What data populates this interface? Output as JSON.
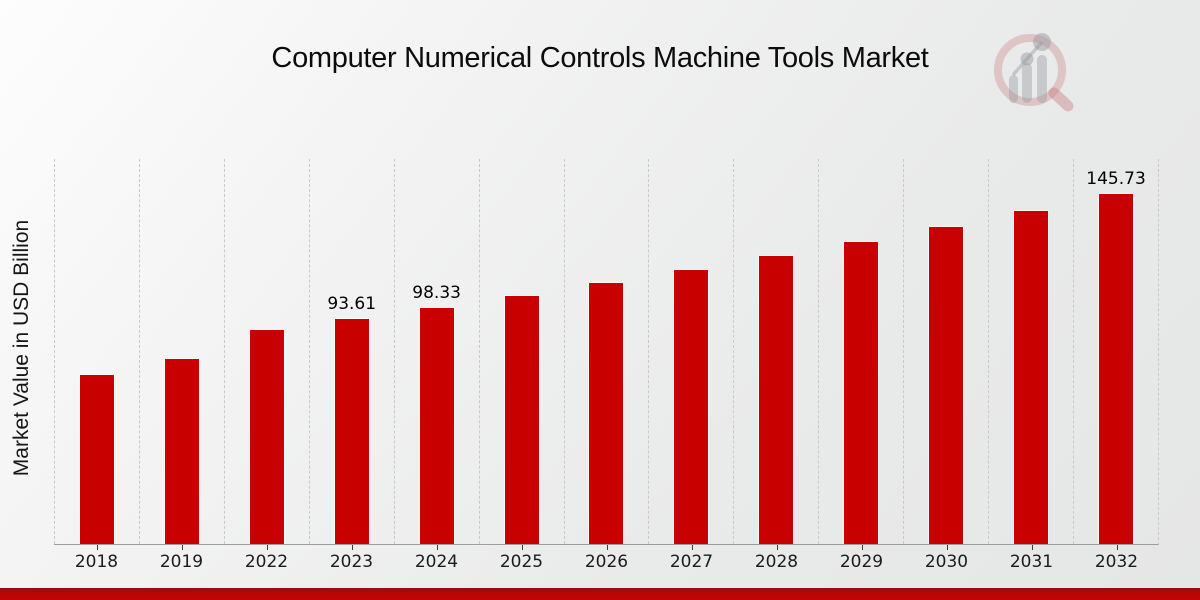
{
  "chart_data": {
    "type": "bar",
    "title": "Computer Numerical Controls Machine Tools Market",
    "ylabel": "Market Value in USD Billion",
    "xlabel": "",
    "categories": [
      "2018",
      "2019",
      "2022",
      "2023",
      "2024",
      "2025",
      "2026",
      "2027",
      "2028",
      "2029",
      "2030",
      "2031",
      "2032"
    ],
    "values": [
      70.3,
      76.9,
      89.12,
      93.61,
      98.33,
      103.28,
      108.49,
      113.96,
      119.7,
      125.74,
      132.08,
      138.73,
      145.73
    ],
    "value_labels": [
      "",
      "",
      "",
      "93.61",
      "98.33",
      "",
      "",
      "",
      "",
      "",
      "",
      "",
      "145.73"
    ],
    "ylim": [
      0,
      160.6
    ],
    "grid": "vertical-dashed",
    "legend": "none",
    "bar_color": "#c80000",
    "gridline_color": "#c9c9c9",
    "axis_line_color": "#9d9d9d",
    "accent_bar_color": "#c80202"
  },
  "watermark": {
    "icon": "magnifier-bar-chart-logo",
    "ring_color": "rgba(198,118,118,0.32)",
    "bar_color": "rgba(148,148,156,0.38)",
    "handle_color": "rgba(198,118,118,0.40)"
  }
}
